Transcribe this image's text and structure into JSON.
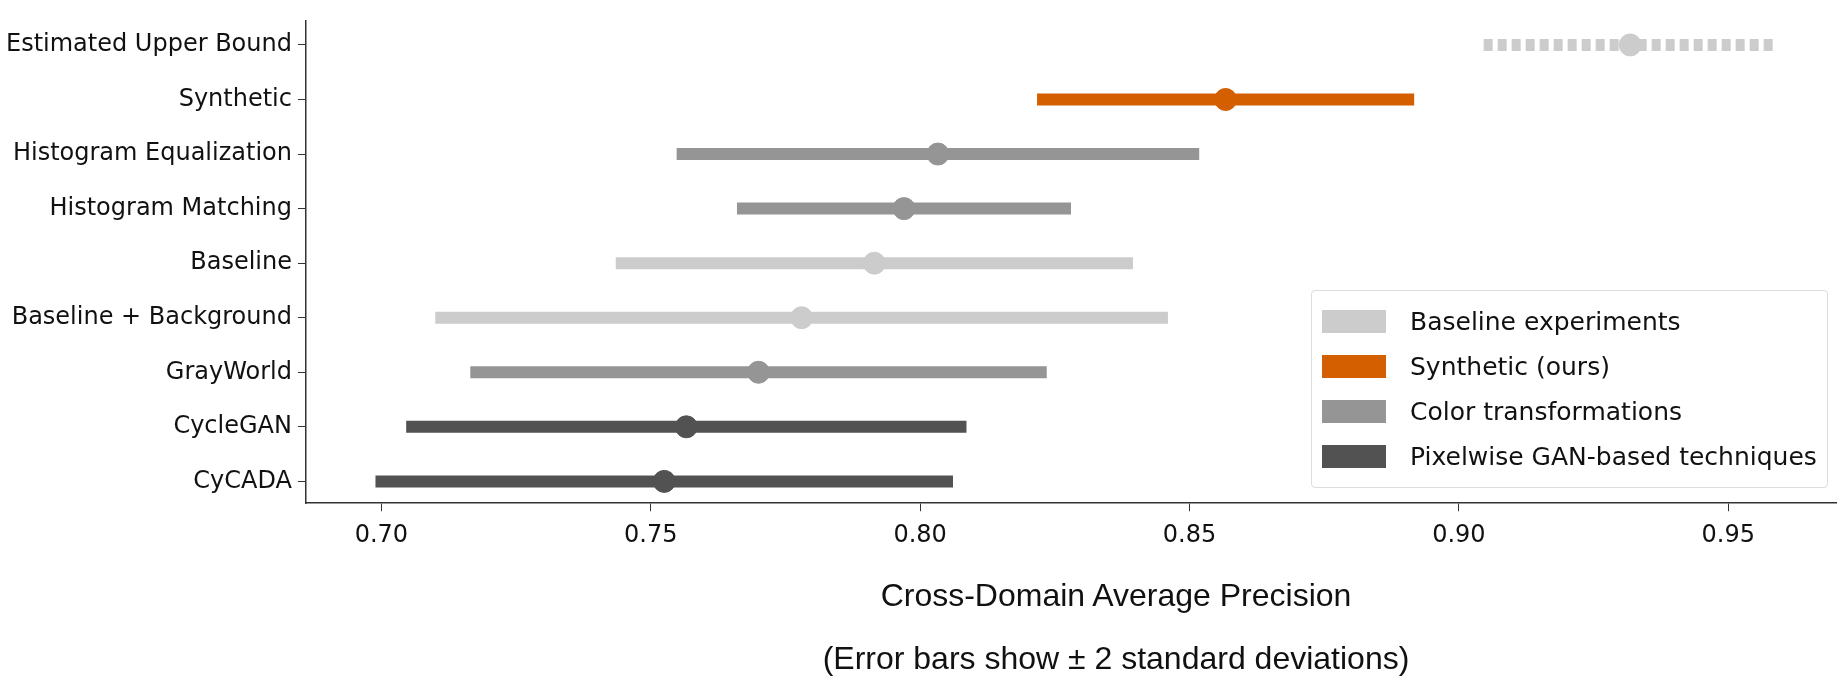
{
  "chart_data": {
    "type": "scatter",
    "orientation": "horizontal",
    "xlabel": "Cross-Domain Average Precision",
    "annotations": [
      "(Error bars show ± 2 standard deviations)"
    ],
    "categories": [
      "Estimated Upper Bound",
      "Synthetic",
      "Histogram Equalization",
      "Histogram Matching",
      "Baseline",
      "Baseline + Background",
      "GrayWorld",
      "CycleGAN",
      "CyCADA"
    ],
    "series": [
      {
        "name": "Baseline experiments",
        "color": "#cccccc",
        "values": [
          null,
          null,
          null,
          null,
          0.7915,
          0.778,
          null,
          null,
          null
        ],
        "errors": [
          null,
          null,
          null,
          null,
          0.048,
          0.068,
          null,
          null,
          null
        ]
      },
      {
        "name": "Synthetic (ours)",
        "color": "#d35f00",
        "values": [
          null,
          0.8567,
          null,
          null,
          null,
          null,
          null,
          null,
          null
        ],
        "errors": [
          null,
          0.035,
          null,
          null,
          null,
          null,
          null,
          null,
          null
        ]
      },
      {
        "name": "Color transformations",
        "color": "#959595",
        "values": [
          null,
          null,
          0.8033,
          0.797,
          null,
          null,
          0.77,
          null,
          null
        ],
        "errors": [
          null,
          null,
          0.0485,
          0.031,
          null,
          null,
          0.0535,
          null,
          null
        ]
      },
      {
        "name": "Pixelwise GAN-based techniques",
        "color": "#525252",
        "values": [
          null,
          null,
          null,
          null,
          null,
          null,
          null,
          0.7566,
          0.7525
        ],
        "errors": [
          null,
          null,
          null,
          null,
          null,
          null,
          null,
          0.052,
          0.0536
        ]
      },
      {
        "color": "#cccccc",
        "line_style": "dashed",
        "values": [
          0.9318,
          null,
          null,
          null,
          null,
          null,
          null,
          null,
          null
        ],
        "errors": [
          0.0272,
          null,
          null,
          null,
          null,
          null,
          null,
          null,
          null
        ]
      }
    ],
    "xlim": [
      0.686,
      0.97
    ],
    "xticks": [
      {
        "value": 0.7,
        "label": "0.70"
      },
      {
        "value": 0.75,
        "label": "0.75"
      },
      {
        "value": 0.8,
        "label": "0.80"
      },
      {
        "value": 0.85,
        "label": "0.85"
      },
      {
        "value": 0.9,
        "label": "0.90"
      },
      {
        "value": 0.95,
        "label": "0.95"
      }
    ],
    "grid": false,
    "legend": "bottom right",
    "marker": "circle"
  }
}
